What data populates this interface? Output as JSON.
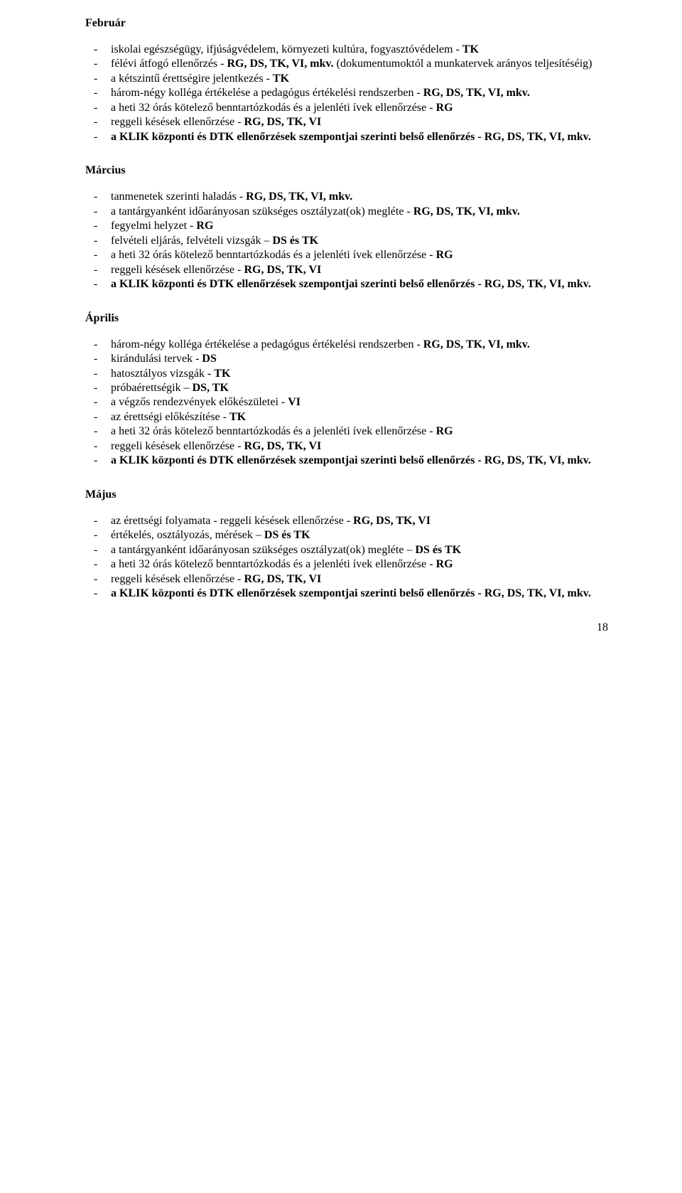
{
  "page_number": "18",
  "sections": {
    "februar": {
      "title": "Február",
      "items": [
        "iskolai egészségügy, ifjúságvédelem, környezeti kultúra, fogyasztóvédelem - TK",
        "félévi átfogó ellenőrzés - RG, DS, TK, VI, mkv. (dokumentumoktól a munkatervek arányos teljesítéséig)",
        "a kétszintű érettségire jelentkezés - TK",
        "három-négy kolléga értékelése a pedagógus értékelési rendszerben - RG, DS, TK, VI, mkv.",
        "a heti 32 órás kötelező benntartózkodás és a jelenléti ívek ellenőrzése - RG",
        "reggeli késések ellenőrzése - RG, DS, TK, VI",
        "a KLIK központi és DTK ellenőrzések szempontjai szerinti belső ellenőrzés - RG, DS, TK, VI, mkv."
      ]
    },
    "marcius": {
      "title": "Március",
      "items": [
        "tanmenetek szerinti haladás - RG, DS, TK, VI, mkv.",
        "a tantárgyanként időarányosan szükséges osztályzat(ok) megléte - RG, DS, TK, VI, mkv.",
        "fegyelmi helyzet - RG",
        "felvételi eljárás, felvételi vizsgák – DS és TK",
        "a heti 32 órás kötelező benntartózkodás és a jelenléti ívek ellenőrzése - RG",
        "reggeli késések ellenőrzése - RG, DS, TK, VI",
        "a KLIK központi és DTK ellenőrzések szempontjai szerinti belső ellenőrzés - RG, DS, TK, VI, mkv."
      ]
    },
    "aprilis": {
      "title": "Április",
      "items": [
        "három-négy kolléga értékelése a pedagógus értékelési rendszerben - RG, DS, TK, VI, mkv.",
        "kirándulási tervek - DS",
        "hatosztályos vizsgák - TK",
        "próbaérettségik – DS, TK",
        "a végzős rendezvények előkészületei - VI",
        "az érettségi előkészítése - TK",
        "a heti 32 órás kötelező benntartózkodás és a jelenléti ívek ellenőrzése - RG",
        "reggeli késések ellenőrzése - RG, DS, TK, VI",
        "a KLIK központi és DTK ellenőrzések szempontjai szerinti belső ellenőrzés - RG, DS, TK, VI, mkv."
      ]
    },
    "majus": {
      "title": "Május",
      "items": [
        "az érettségi folyamata - reggeli késések ellenőrzése - RG, DS, TK, VI",
        "értékelés, osztályozás, mérések – DS és TK",
        "a tantárgyanként időarányosan szükséges osztályzat(ok) megléte – DS és TK",
        "a heti 32 órás kötelező benntartózkodás és a jelenléti ívek ellenőrzése - RG",
        "reggeli késések ellenőrzése - RG, DS, TK, VI",
        "a KLIK központi és DTK ellenőrzések szempontjai szerinti belső ellenőrzés - RG, DS, TK, VI, mkv."
      ]
    }
  },
  "bold_tokens": [
    "TK",
    "RG,",
    "DS,",
    "TK,",
    "VI,",
    "mkv.",
    "RG",
    "VI",
    "DS",
    "a KLIK központi és DTK ellenőrzések szempontjai szerinti belső ellenőrzés - RG, DS, TK, VI, mkv.",
    "DS és TK",
    "RG, DS, TK, VI",
    "RG, DS, TK, VI, mkv."
  ]
}
